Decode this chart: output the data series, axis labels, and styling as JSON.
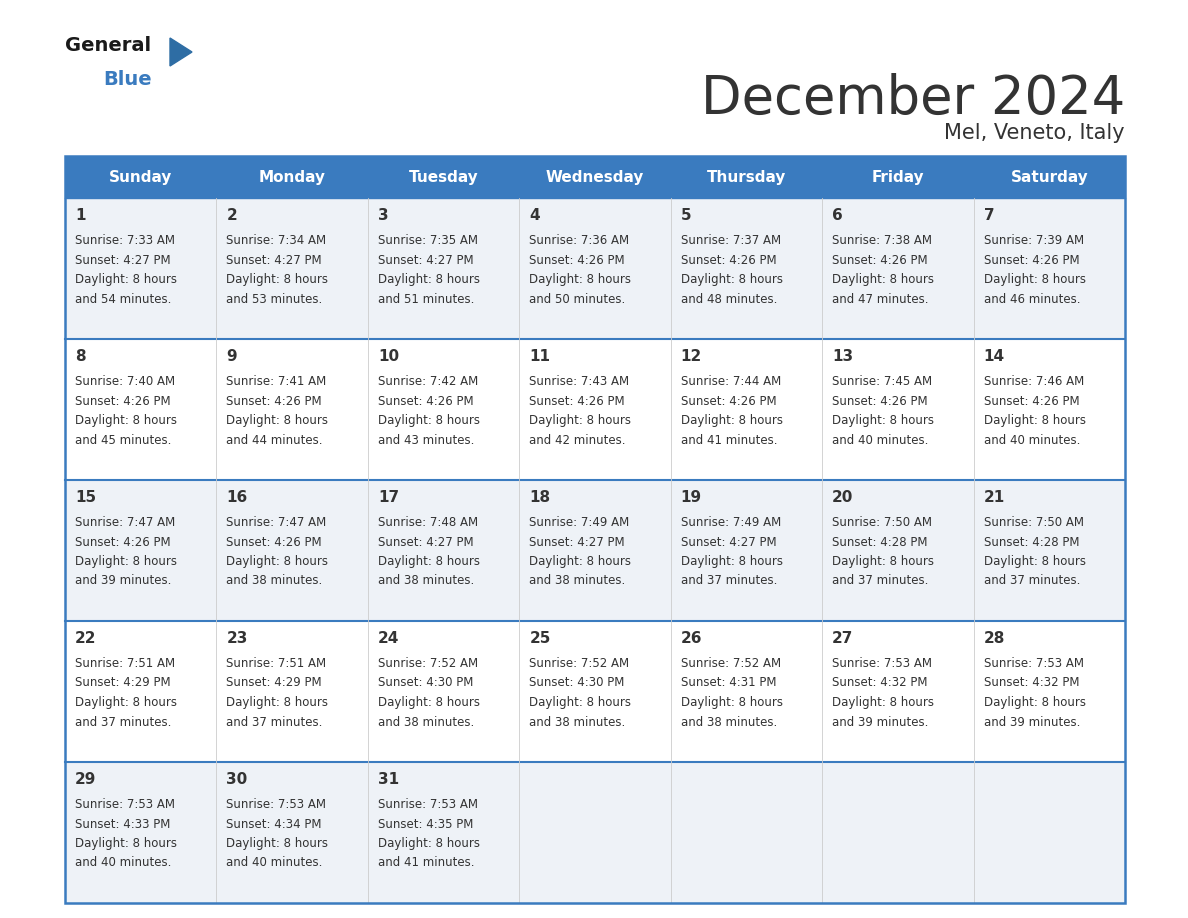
{
  "title": "December 2024",
  "subtitle": "Mel, Veneto, Italy",
  "header_color": "#3a7bbf",
  "header_text_color": "#ffffff",
  "bg_color": "#ffffff",
  "cell_bg_odd": "#eef2f7",
  "cell_bg_even": "#ffffff",
  "border_color": "#3a7bbf",
  "row_separator_color": "#3a7bbf",
  "col_separator_color": "#cccccc",
  "text_color": "#333333",
  "days_of_week": [
    "Sunday",
    "Monday",
    "Tuesday",
    "Wednesday",
    "Thursday",
    "Friday",
    "Saturday"
  ],
  "weeks": [
    [
      {
        "day": 1,
        "sunrise": "7:33 AM",
        "sunset": "4:27 PM",
        "daylight": "8 hours and 54 minutes."
      },
      {
        "day": 2,
        "sunrise": "7:34 AM",
        "sunset": "4:27 PM",
        "daylight": "8 hours and 53 minutes."
      },
      {
        "day": 3,
        "sunrise": "7:35 AM",
        "sunset": "4:27 PM",
        "daylight": "8 hours and 51 minutes."
      },
      {
        "day": 4,
        "sunrise": "7:36 AM",
        "sunset": "4:26 PM",
        "daylight": "8 hours and 50 minutes."
      },
      {
        "day": 5,
        "sunrise": "7:37 AM",
        "sunset": "4:26 PM",
        "daylight": "8 hours and 48 minutes."
      },
      {
        "day": 6,
        "sunrise": "7:38 AM",
        "sunset": "4:26 PM",
        "daylight": "8 hours and 47 minutes."
      },
      {
        "day": 7,
        "sunrise": "7:39 AM",
        "sunset": "4:26 PM",
        "daylight": "8 hours and 46 minutes."
      }
    ],
    [
      {
        "day": 8,
        "sunrise": "7:40 AM",
        "sunset": "4:26 PM",
        "daylight": "8 hours and 45 minutes."
      },
      {
        "day": 9,
        "sunrise": "7:41 AM",
        "sunset": "4:26 PM",
        "daylight": "8 hours and 44 minutes."
      },
      {
        "day": 10,
        "sunrise": "7:42 AM",
        "sunset": "4:26 PM",
        "daylight": "8 hours and 43 minutes."
      },
      {
        "day": 11,
        "sunrise": "7:43 AM",
        "sunset": "4:26 PM",
        "daylight": "8 hours and 42 minutes."
      },
      {
        "day": 12,
        "sunrise": "7:44 AM",
        "sunset": "4:26 PM",
        "daylight": "8 hours and 41 minutes."
      },
      {
        "day": 13,
        "sunrise": "7:45 AM",
        "sunset": "4:26 PM",
        "daylight": "8 hours and 40 minutes."
      },
      {
        "day": 14,
        "sunrise": "7:46 AM",
        "sunset": "4:26 PM",
        "daylight": "8 hours and 40 minutes."
      }
    ],
    [
      {
        "day": 15,
        "sunrise": "7:47 AM",
        "sunset": "4:26 PM",
        "daylight": "8 hours and 39 minutes."
      },
      {
        "day": 16,
        "sunrise": "7:47 AM",
        "sunset": "4:26 PM",
        "daylight": "8 hours and 38 minutes."
      },
      {
        "day": 17,
        "sunrise": "7:48 AM",
        "sunset": "4:27 PM",
        "daylight": "8 hours and 38 minutes."
      },
      {
        "day": 18,
        "sunrise": "7:49 AM",
        "sunset": "4:27 PM",
        "daylight": "8 hours and 38 minutes."
      },
      {
        "day": 19,
        "sunrise": "7:49 AM",
        "sunset": "4:27 PM",
        "daylight": "8 hours and 37 minutes."
      },
      {
        "day": 20,
        "sunrise": "7:50 AM",
        "sunset": "4:28 PM",
        "daylight": "8 hours and 37 minutes."
      },
      {
        "day": 21,
        "sunrise": "7:50 AM",
        "sunset": "4:28 PM",
        "daylight": "8 hours and 37 minutes."
      }
    ],
    [
      {
        "day": 22,
        "sunrise": "7:51 AM",
        "sunset": "4:29 PM",
        "daylight": "8 hours and 37 minutes."
      },
      {
        "day": 23,
        "sunrise": "7:51 AM",
        "sunset": "4:29 PM",
        "daylight": "8 hours and 37 minutes."
      },
      {
        "day": 24,
        "sunrise": "7:52 AM",
        "sunset": "4:30 PM",
        "daylight": "8 hours and 38 minutes."
      },
      {
        "day": 25,
        "sunrise": "7:52 AM",
        "sunset": "4:30 PM",
        "daylight": "8 hours and 38 minutes."
      },
      {
        "day": 26,
        "sunrise": "7:52 AM",
        "sunset": "4:31 PM",
        "daylight": "8 hours and 38 minutes."
      },
      {
        "day": 27,
        "sunrise": "7:53 AM",
        "sunset": "4:32 PM",
        "daylight": "8 hours and 39 minutes."
      },
      {
        "day": 28,
        "sunrise": "7:53 AM",
        "sunset": "4:32 PM",
        "daylight": "8 hours and 39 minutes."
      }
    ],
    [
      {
        "day": 29,
        "sunrise": "7:53 AM",
        "sunset": "4:33 PM",
        "daylight": "8 hours and 40 minutes."
      },
      {
        "day": 30,
        "sunrise": "7:53 AM",
        "sunset": "4:34 PM",
        "daylight": "8 hours and 40 minutes."
      },
      {
        "day": 31,
        "sunrise": "7:53 AM",
        "sunset": "4:35 PM",
        "daylight": "8 hours and 41 minutes."
      },
      null,
      null,
      null,
      null
    ]
  ],
  "logo_general_color": "#1a1a1a",
  "logo_blue_color": "#3a7bbf",
  "logo_triangle_color": "#2e6da4",
  "title_fontsize": 38,
  "subtitle_fontsize": 15,
  "day_num_fontsize": 11,
  "cell_text_fontsize": 8.5,
  "header_fontsize": 11
}
